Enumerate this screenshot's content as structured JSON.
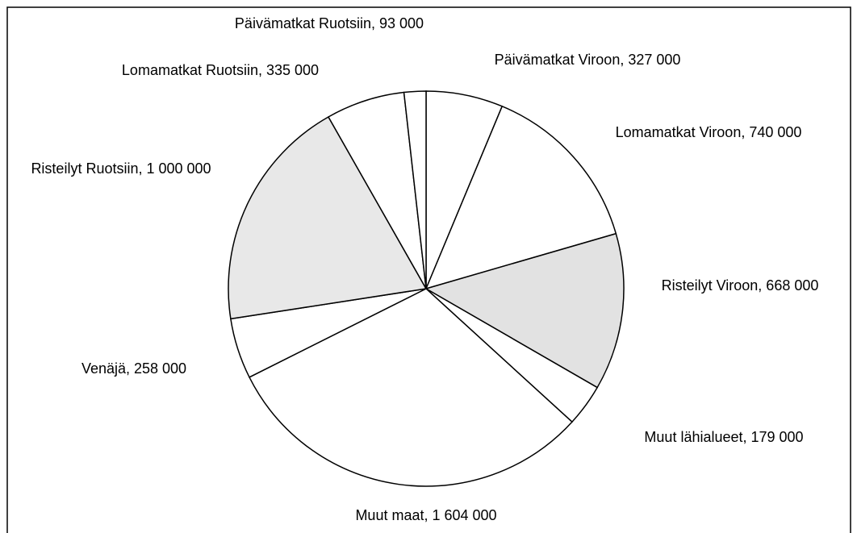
{
  "chart_data": {
    "type": "pie",
    "labels": [
      "Päivämatkat Viroon, 327 000",
      "Lomamatkat Viroon, 740 000",
      "Risteilyt Viroon, 668 000",
      "Muut lähialueet, 179 000",
      "Muut maat, 1 604 000",
      "Venäjä, 258 000",
      "Risteilyt Ruotsiin, 1 000 000",
      "Lomamatkat Ruotsiin, 335 000",
      "Päivämatkat Ruotsiin, 93 000"
    ],
    "values": [
      327000,
      740000,
      668000,
      179000,
      1604000,
      258000,
      1000000,
      335000,
      93000
    ],
    "colors": [
      "#ffffff",
      "#ffffff",
      "#e2e2e2",
      "#ffffff",
      "#ffffff",
      "#ffffff",
      "#e8e8e8",
      "#ffffff",
      "#ffffff"
    ]
  }
}
